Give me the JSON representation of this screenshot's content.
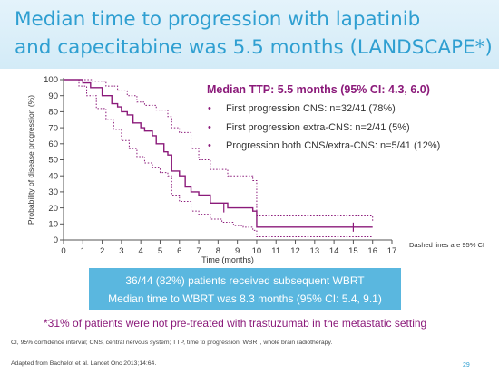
{
  "slide": {
    "title_line1": "Median time to progression with lapatinib",
    "title_line2": "and capecitabine was 5.5 months (LANDSCAPE*)",
    "ttp_heading": "Median TTP: 5.5 months (95% CI: 4.3, 6.0)",
    "bullets": [
      "First progression CNS: n=32/41 (78%)",
      "First progression extra-CNS: n=2/41 (5%)",
      "Progression both CNS/extra-CNS: n=5/41 (12%)"
    ],
    "bullet_glyph": "•",
    "dashed_note": "Dashed lines are 95% CI",
    "wbrt_line1": "36/44 (82%) patients received subsequent WBRT",
    "wbrt_line2": "Median time to WBRT was 8.3 months (95% CI: 5.4, 9.1)",
    "footnote": "*31% of patients were not pre-treated with trastuzumab in the metastatic setting",
    "abbreviations": "CI, 95%  confidence interval; CNS, central nervous system; TTP, time to progression; WBRT, whole brain radiotherapy.",
    "source": "Adapted from Bachelot et al. Lancet Onc 2013;14:64.",
    "page_number": "29"
  },
  "colors": {
    "title": "#2f9fd1",
    "accent": "#8b1a7a",
    "box": "#5ab7df",
    "header_bg": "#e4f3fb"
  },
  "chart_data": {
    "type": "line",
    "xlabel": "Time (months)",
    "ylabel": "Probability of disease progression (%)",
    "xlim": [
      0,
      17
    ],
    "ylim": [
      0,
      100
    ],
    "x_ticks": [
      0,
      1,
      2,
      3,
      4,
      5,
      6,
      7,
      8,
      9,
      10,
      11,
      12,
      13,
      14,
      15,
      16,
      17
    ],
    "y_ticks": [
      0,
      10,
      20,
      30,
      40,
      50,
      60,
      70,
      80,
      90,
      100
    ],
    "step": true,
    "series": [
      {
        "style": "solid",
        "x": [
          0,
          1.0,
          1.4,
          2.0,
          2.5,
          2.8,
          3.0,
          3.3,
          3.6,
          4.0,
          4.2,
          4.6,
          4.8,
          5.2,
          5.4,
          5.6,
          6.0,
          6.3,
          6.6,
          7.0,
          7.6,
          8.5,
          9.3,
          9.8,
          10.0,
          16.0
        ],
        "y": [
          100,
          98,
          95,
          90,
          85,
          83,
          80,
          78,
          73,
          70,
          68,
          65,
          60,
          55,
          53,
          43,
          40,
          33,
          30,
          28,
          23,
          20,
          20,
          18,
          8,
          8
        ]
      },
      {
        "style": "dashed",
        "x": [
          0,
          0.5,
          1.0,
          1.5,
          2.2,
          2.8,
          3.3,
          3.8,
          4.2,
          4.8,
          5.4,
          5.6,
          6.0,
          6.6,
          7.0,
          7.6,
          8.5,
          9.3,
          9.8,
          10.0,
          16.0
        ],
        "y": [
          100,
          100,
          100,
          99,
          96,
          93,
          90,
          86,
          84,
          81,
          77,
          70,
          67,
          57,
          50,
          44,
          40,
          40,
          37,
          15,
          12
        ]
      },
      {
        "style": "dashed",
        "x": [
          0,
          0.8,
          1.2,
          1.7,
          2.2,
          2.6,
          3.0,
          3.4,
          3.8,
          4.2,
          4.6,
          5.0,
          5.4,
          5.6,
          6.0,
          6.6,
          7.0,
          7.6,
          8.2,
          8.8,
          9.3,
          9.8,
          10.0,
          16.0
        ],
        "y": [
          100,
          96,
          90,
          82,
          75,
          69,
          62,
          57,
          52,
          48,
          45,
          42,
          40,
          28,
          24,
          18,
          16,
          13,
          11,
          9,
          8,
          6,
          2,
          2
        ]
      }
    ],
    "censor_marks": [
      {
        "x": 8.3,
        "y": 20
      },
      {
        "x": 15.0,
        "y": 8
      }
    ],
    "grid": false
  }
}
